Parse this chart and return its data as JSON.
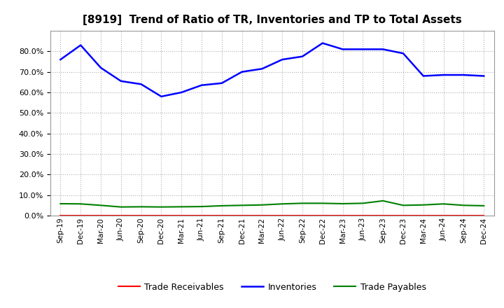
{
  "title": "[8919]  Trend of Ratio of TR, Inventories and TP to Total Assets",
  "x_labels": [
    "Sep-19",
    "Dec-19",
    "Mar-20",
    "Jun-20",
    "Sep-20",
    "Dec-20",
    "Mar-21",
    "Jun-21",
    "Sep-21",
    "Dec-21",
    "Mar-22",
    "Jun-22",
    "Sep-22",
    "Dec-22",
    "Mar-23",
    "Jun-23",
    "Sep-23",
    "Dec-23",
    "Mar-24",
    "Jun-24",
    "Sep-24",
    "Dec-24"
  ],
  "trade_receivables": [
    0.001,
    0.001,
    0.001,
    0.001,
    0.001,
    0.001,
    0.001,
    0.001,
    0.001,
    0.001,
    0.001,
    0.001,
    0.001,
    0.001,
    0.001,
    0.001,
    0.001,
    0.001,
    0.001,
    0.001,
    0.001,
    0.001
  ],
  "inventories": [
    0.76,
    0.83,
    0.72,
    0.655,
    0.64,
    0.58,
    0.6,
    0.635,
    0.645,
    0.7,
    0.715,
    0.76,
    0.775,
    0.84,
    0.81,
    0.81,
    0.81,
    0.79,
    0.68,
    0.685,
    0.685,
    0.68
  ],
  "trade_payables": [
    0.058,
    0.057,
    0.05,
    0.042,
    0.043,
    0.042,
    0.043,
    0.044,
    0.048,
    0.05,
    0.052,
    0.057,
    0.06,
    0.06,
    0.058,
    0.06,
    0.072,
    0.05,
    0.052,
    0.057,
    0.05,
    0.048
  ],
  "tr_color": "#ff0000",
  "inv_color": "#0000ff",
  "tp_color": "#008000",
  "ylim": [
    0.0,
    0.9
  ],
  "yticks": [
    0.0,
    0.1,
    0.2,
    0.3,
    0.4,
    0.5,
    0.6,
    0.7,
    0.8
  ],
  "background_color": "#ffffff",
  "grid_color": "#b0b0b0",
  "title_fontsize": 11,
  "legend_labels": [
    "Trade Receivables",
    "Inventories",
    "Trade Payables"
  ]
}
